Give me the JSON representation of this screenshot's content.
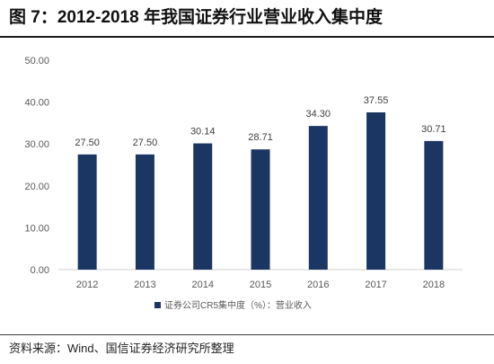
{
  "source": "资料来源：Wind、国信证券经济研究所整理",
  "colors": {
    "bar": "#1c3664",
    "axis": "#d0d0d0"
  },
  "chart_data": {
    "type": "bar",
    "title": "图 7：2012-2018 年我国证券行业营业收入集中度",
    "categories": [
      "2012",
      "2013",
      "2014",
      "2015",
      "2016",
      "2017",
      "2018"
    ],
    "series": [
      {
        "name": "证券公司CR5集中度（%）：营业收入",
        "values": [
          27.5,
          27.5,
          30.14,
          28.71,
          34.3,
          37.55,
          30.71
        ]
      }
    ],
    "y_ticks": [
      0,
      10,
      20,
      30,
      40,
      50
    ],
    "ylim": [
      0,
      50
    ],
    "grid": false,
    "legend": "bottom"
  }
}
